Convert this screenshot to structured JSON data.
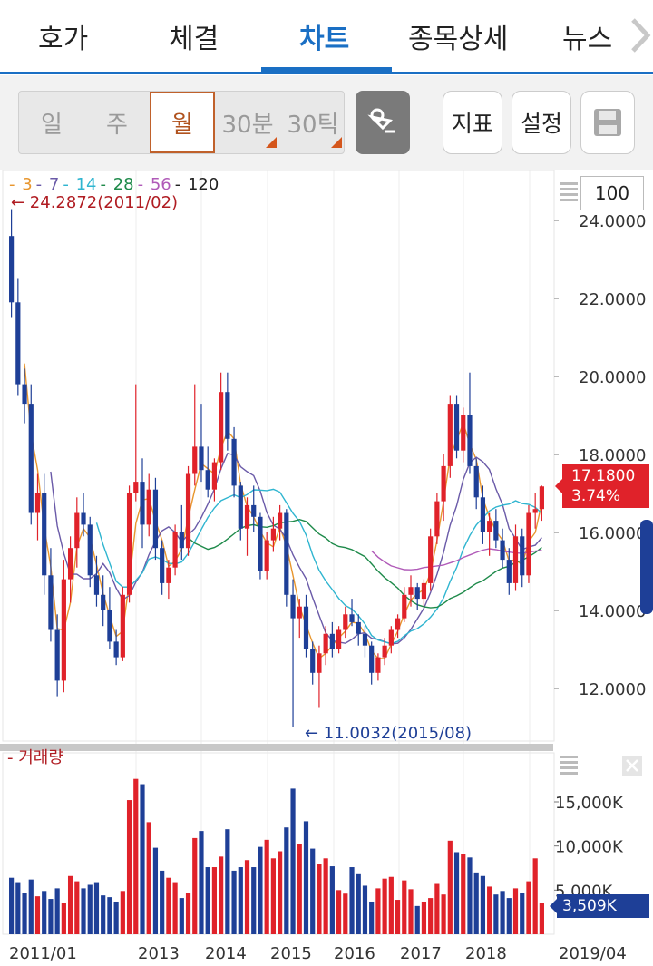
{
  "tabs": [
    {
      "label": "호가"
    },
    {
      "label": "체결"
    },
    {
      "label": "차트"
    },
    {
      "label": "종목상세"
    },
    {
      "label": "뉴스"
    }
  ],
  "periods": [
    {
      "label": "일"
    },
    {
      "label": "주"
    },
    {
      "label": "월"
    },
    {
      "label": "30분"
    },
    {
      "label": "30틱"
    }
  ],
  "toolbar": {
    "indicator_label": "지표",
    "settings_label": "설정"
  },
  "legend": [
    {
      "label": "3",
      "color": "#e8962e"
    },
    {
      "label": "7",
      "color": "#6a5aa8"
    },
    {
      "label": "14",
      "color": "#2fb5d0"
    },
    {
      "label": "28",
      "color": "#1e8a4a"
    },
    {
      "label": "56",
      "color": "#b05ab8"
    },
    {
      "label": "120",
      "color": "#222222"
    }
  ],
  "period_count": "100",
  "annotations": {
    "max_label": "24.2872(2011/02)",
    "min_label": "11.0032(2015/08)"
  },
  "current": {
    "price": "17.1800",
    "change": "3.74%",
    "volume": "3,509K"
  },
  "volume_label": "거래량",
  "price_axis": [
    "24.0000",
    "22.0000",
    "20.0000",
    "18.0000",
    "16.0000",
    "14.0000",
    "12.0000"
  ],
  "volume_axis": [
    "15,000K",
    "10,000K",
    "5,000K"
  ],
  "x_axis": [
    "2011/01",
    "2013",
    "2014",
    "2015",
    "2016",
    "2017",
    "2018",
    "2019/04"
  ],
  "colors": {
    "up": "#e0222a",
    "down": "#1e3f97",
    "accent": "#1a6fc4"
  },
  "chart_data": {
    "type": "candlestick",
    "interval": "monthly",
    "y_range": [
      11.0,
      24.3
    ],
    "volume_range_k": [
      0,
      18000
    ],
    "x_labels": [
      "2011/01",
      "2013",
      "2014",
      "2015",
      "2016",
      "2017",
      "2018",
      "2019/04"
    ],
    "ohlc": [
      [
        23.6,
        24.29,
        21.5,
        21.9
      ],
      [
        21.9,
        22.5,
        19.5,
        19.8
      ],
      [
        19.8,
        20.2,
        18.8,
        19.3
      ],
      [
        19.3,
        19.8,
        16.2,
        16.5
      ],
      [
        16.5,
        17.5,
        15.8,
        17.0
      ],
      [
        17.0,
        17.5,
        14.4,
        14.9
      ],
      [
        14.9,
        15.6,
        13.2,
        13.5
      ],
      [
        13.5,
        13.9,
        11.8,
        12.2
      ],
      [
        12.2,
        15.3,
        11.9,
        14.8
      ],
      [
        14.8,
        15.9,
        14.2,
        15.6
      ],
      [
        15.6,
        16.9,
        15.1,
        16.5
      ],
      [
        16.5,
        17.0,
        15.9,
        16.2
      ],
      [
        16.2,
        16.4,
        14.6,
        14.9
      ],
      [
        14.9,
        15.4,
        14.1,
        14.4
      ],
      [
        14.4,
        14.9,
        13.6,
        14.0
      ],
      [
        14.0,
        14.6,
        13.0,
        13.2
      ],
      [
        13.2,
        13.5,
        12.6,
        12.8
      ],
      [
        12.8,
        14.6,
        12.7,
        14.4
      ],
      [
        14.4,
        17.2,
        14.2,
        17.0
      ],
      [
        17.0,
        19.8,
        16.8,
        17.3
      ],
      [
        17.3,
        17.9,
        15.6,
        16.2
      ],
      [
        16.2,
        17.5,
        15.9,
        17.1
      ],
      [
        17.1,
        17.4,
        15.3,
        15.6
      ],
      [
        15.6,
        15.8,
        14.4,
        14.7
      ],
      [
        14.7,
        15.3,
        14.3,
        15.1
      ],
      [
        15.1,
        16.2,
        14.9,
        16.0
      ],
      [
        16.0,
        16.7,
        15.3,
        15.6
      ],
      [
        15.6,
        17.7,
        15.4,
        17.5
      ],
      [
        17.5,
        19.8,
        17.2,
        18.2
      ],
      [
        18.2,
        19.3,
        17.3,
        17.6
      ],
      [
        17.6,
        18.2,
        16.9,
        17.1
      ],
      [
        17.1,
        17.9,
        16.8,
        17.8
      ],
      [
        17.8,
        20.1,
        17.6,
        19.6
      ],
      [
        19.6,
        20.1,
        18.1,
        18.4
      ],
      [
        18.4,
        18.7,
        16.9,
        17.2
      ],
      [
        17.2,
        17.3,
        15.8,
        16.1
      ],
      [
        16.1,
        16.9,
        15.4,
        16.7
      ],
      [
        16.7,
        17.2,
        16.0,
        16.4
      ],
      [
        16.4,
        16.5,
        14.8,
        15.0
      ],
      [
        15.0,
        16.0,
        14.8,
        15.8
      ],
      [
        15.8,
        16.4,
        15.5,
        16.1
      ],
      [
        16.1,
        16.7,
        15.8,
        16.5
      ],
      [
        16.5,
        16.6,
        14.1,
        14.4
      ],
      [
        14.4,
        14.8,
        11.0,
        13.8
      ],
      [
        13.8,
        14.3,
        13.3,
        14.1
      ],
      [
        14.1,
        14.4,
        12.8,
        13.0
      ],
      [
        13.0,
        13.2,
        12.1,
        12.4
      ],
      [
        12.4,
        13.1,
        11.5,
        12.9
      ],
      [
        12.9,
        13.6,
        12.6,
        13.4
      ],
      [
        13.4,
        13.7,
        12.8,
        13.0
      ],
      [
        13.0,
        13.6,
        12.9,
        13.5
      ],
      [
        13.5,
        14.1,
        13.3,
        13.9
      ],
      [
        13.9,
        14.3,
        13.6,
        13.7
      ],
      [
        13.7,
        13.9,
        13.1,
        13.4
      ],
      [
        13.4,
        13.6,
        12.8,
        13.1
      ],
      [
        13.1,
        13.2,
        12.1,
        12.4
      ],
      [
        12.4,
        12.9,
        12.2,
        12.8
      ],
      [
        12.8,
        13.3,
        12.6,
        13.1
      ],
      [
        13.1,
        13.6,
        12.9,
        13.5
      ],
      [
        13.5,
        13.9,
        13.3,
        13.8
      ],
      [
        13.8,
        14.6,
        13.7,
        14.4
      ],
      [
        14.4,
        14.9,
        14.1,
        14.6
      ],
      [
        14.6,
        14.7,
        14.0,
        14.3
      ],
      [
        14.3,
        14.8,
        14.1,
        14.7
      ],
      [
        14.7,
        16.1,
        14.5,
        15.9
      ],
      [
        15.9,
        17.0,
        15.7,
        16.8
      ],
      [
        16.8,
        18.0,
        16.3,
        17.7
      ],
      [
        17.7,
        19.5,
        17.4,
        19.3
      ],
      [
        19.3,
        19.5,
        17.9,
        18.1
      ],
      [
        18.1,
        19.2,
        17.8,
        19.0
      ],
      [
        19.0,
        20.1,
        17.5,
        17.7
      ],
      [
        17.7,
        17.9,
        16.6,
        16.9
      ],
      [
        16.9,
        17.2,
        15.7,
        16.0
      ],
      [
        16.0,
        16.5,
        15.4,
        16.3
      ],
      [
        16.3,
        16.6,
        15.6,
        15.8
      ],
      [
        15.8,
        16.1,
        15.1,
        15.3
      ],
      [
        15.3,
        15.6,
        14.4,
        14.7
      ],
      [
        14.7,
        16.2,
        14.5,
        15.9
      ],
      [
        15.9,
        16.1,
        14.6,
        14.9
      ],
      [
        14.9,
        16.7,
        14.7,
        16.5
      ],
      [
        16.5,
        17.0,
        16.1,
        16.6
      ],
      [
        16.6,
        17.2,
        16.3,
        17.18
      ]
    ],
    "volume_k": [
      6400,
      5900,
      4700,
      6200,
      4300,
      4900,
      4000,
      5200,
      3500,
      6600,
      6000,
      5200,
      5600,
      5900,
      4400,
      4200,
      3700,
      4900,
      15200,
      17600,
      17000,
      12700,
      9800,
      7200,
      6400,
      5900,
      4100,
      4700,
      10900,
      11700,
      7600,
      7600,
      8800,
      11900,
      7200,
      7600,
      8400,
      7600,
      9900,
      10700,
      8600,
      9400,
      12100,
      16500,
      10200,
      12800,
      9700,
      8000,
      8600,
      7700,
      5000,
      4600,
      7600,
      6800,
      5500,
      3700,
      5200,
      6300,
      6500,
      3900,
      6100,
      5100,
      3200,
      3700,
      4100,
      5700,
      4500,
      10600,
      9300,
      9100,
      8700,
      7000,
      6600,
      5400,
      4500,
      4900,
      4100,
      5200,
      4700,
      6000,
      8600,
      3509
    ]
  }
}
